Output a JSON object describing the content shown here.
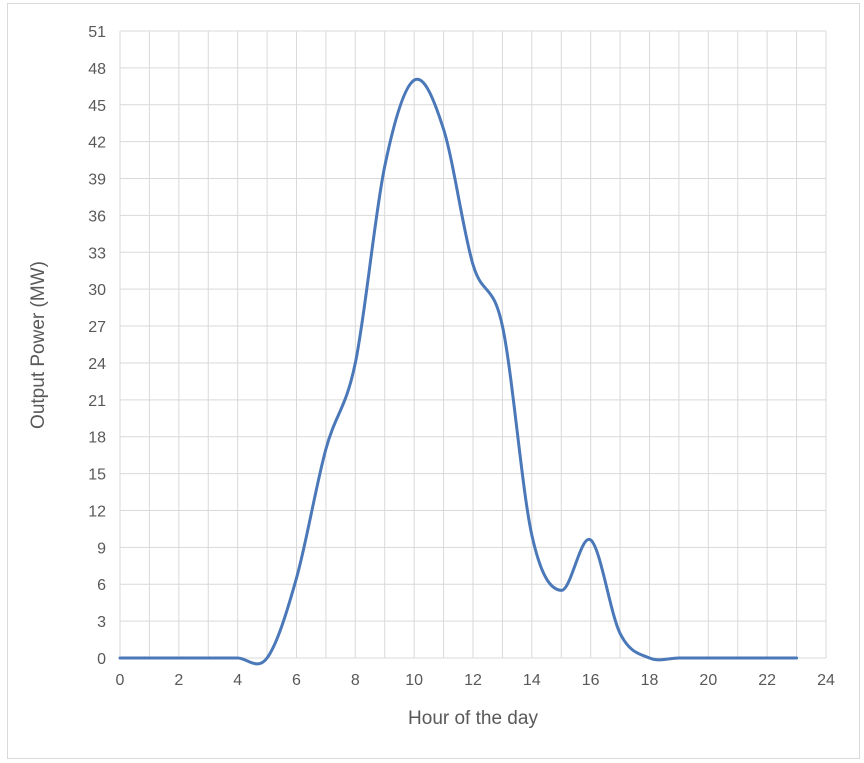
{
  "chart_data": {
    "type": "line",
    "title": "",
    "xlabel": "Hour of the day",
    "ylabel": "Output Power (MW)",
    "xlim": [
      0,
      24
    ],
    "ylim": [
      0,
      51
    ],
    "x_ticks": [
      0,
      2,
      4,
      6,
      8,
      10,
      12,
      14,
      16,
      18,
      20,
      22,
      24
    ],
    "y_ticks": [
      0,
      3,
      6,
      9,
      12,
      15,
      18,
      21,
      24,
      27,
      30,
      33,
      36,
      39,
      42,
      45,
      48,
      51
    ],
    "grid": true,
    "legend": "none",
    "line_color": "#4a78b8",
    "series": [
      {
        "x": [
          0,
          1,
          2,
          3,
          4,
          5,
          6,
          7,
          8,
          9,
          10,
          11,
          12,
          13,
          14,
          15,
          16,
          17,
          18,
          19,
          20,
          21,
          22,
          23
        ],
        "values": [
          0,
          0,
          0,
          0,
          0,
          0,
          6.5,
          17,
          24,
          40,
          47,
          43,
          32,
          27,
          10,
          5.5,
          9.6,
          2,
          0,
          0,
          0,
          0,
          0,
          0
        ]
      }
    ]
  }
}
